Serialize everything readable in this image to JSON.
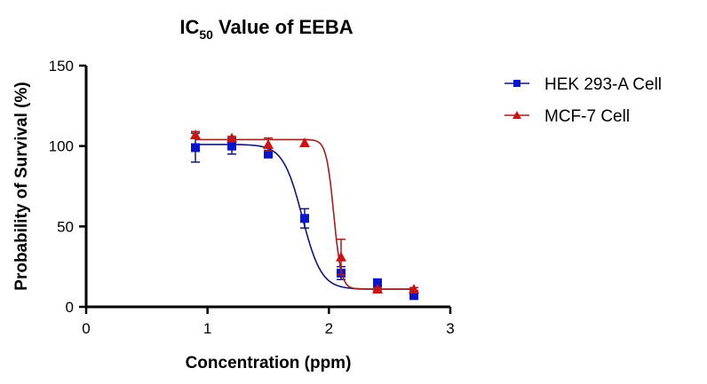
{
  "chart_data": {
    "type": "scatter",
    "title": "IC",
    "title_subscript": "50",
    "title_suffix": " Value of EEBA",
    "xlabel": "Concentration (ppm)",
    "ylabel": "Probability of Survival (%)",
    "xlim": [
      0,
      3
    ],
    "ylim": [
      0,
      150
    ],
    "xticks": [
      "0",
      "1",
      "2",
      "3"
    ],
    "yticks": [
      "0",
      "50",
      "100",
      "150"
    ],
    "grid": false,
    "legend_position": "right",
    "series": [
      {
        "name": "HEK 293-A Cell",
        "color": "#0a14c8",
        "line_color": "#10186e",
        "marker": "square",
        "x": [
          0.9,
          1.2,
          1.5,
          1.8,
          2.1,
          2.4,
          2.7
        ],
        "y": [
          99,
          100,
          95,
          55,
          21,
          15,
          7
        ],
        "err": [
          9,
          5,
          2,
          6,
          4,
          2,
          1
        ],
        "fit": {
          "top": 101,
          "bottom": 11,
          "logIC50": 1.78,
          "hill": 5.5
        }
      },
      {
        "name": "MCF-7 Cell",
        "color": "#c81414",
        "line_color": "#a0201e",
        "marker": "triangle",
        "x": [
          0.9,
          1.2,
          1.5,
          1.8,
          2.1,
          2.4,
          2.7
        ],
        "y": [
          107,
          105,
          101,
          102,
          31,
          11,
          11
        ],
        "err": [
          2,
          1,
          4,
          2,
          11,
          1,
          1
        ],
        "fit": {
          "top": 104,
          "bottom": 11,
          "logIC50": 2.04,
          "hill": 14
        }
      }
    ]
  }
}
